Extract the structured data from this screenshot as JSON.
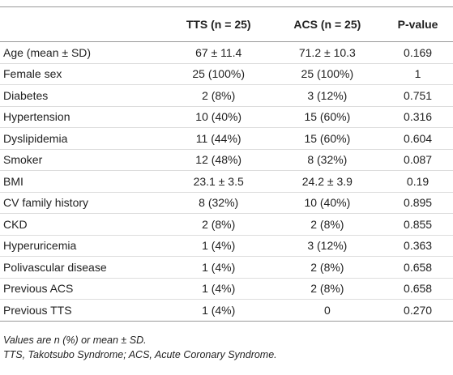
{
  "table": {
    "header": [
      "",
      "TTS (n = 25)",
      "ACS (n = 25)",
      "P-value"
    ],
    "rows": [
      [
        "Age (mean ± SD)",
        "67 ± 11.4",
        "71.2 ± 10.3",
        "0.169"
      ],
      [
        "Female sex",
        "25 (100%)",
        "25 (100%)",
        "1"
      ],
      [
        "Diabetes",
        "2 (8%)",
        "3 (12%)",
        "0.751"
      ],
      [
        "Hypertension",
        "10 (40%)",
        "15 (60%)",
        "0.316"
      ],
      [
        "Dyslipidemia",
        "11 (44%)",
        "15 (60%)",
        "0.604"
      ],
      [
        "Smoker",
        "12 (48%)",
        "8 (32%)",
        "0.087"
      ],
      [
        "BMI",
        "23.1 ± 3.5",
        "24.2 ± 3.9",
        "0.19"
      ],
      [
        "CV family history",
        "8 (32%)",
        "10 (40%)",
        "0.895"
      ],
      [
        "CKD",
        "2 (8%)",
        "2 (8%)",
        "0.855"
      ],
      [
        "Hyperuricemia",
        "1 (4%)",
        "3 (12%)",
        "0.363"
      ],
      [
        "Polivascular disease",
        "1 (4%)",
        "2 (8%)",
        "0.658"
      ],
      [
        "Previous ACS",
        "1 (4%)",
        "2 (8%)",
        "0.658"
      ],
      [
        "Previous TTS",
        "1 (4%)",
        "0",
        "0.270"
      ]
    ],
    "notes": [
      "Values are n (%) or mean ± SD.",
      "TTS, Takotsubo Syndrome; ACS, Acute Coronary Syndrome."
    ]
  }
}
